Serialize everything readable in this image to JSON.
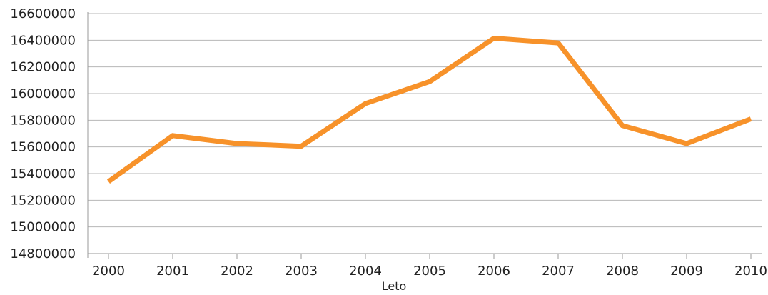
{
  "chart_data": {
    "type": "line",
    "title": "",
    "xlabel": "Leto",
    "ylabel": "",
    "x": [
      "2000",
      "2001",
      "2002",
      "2003",
      "2004",
      "2005",
      "2006",
      "2007",
      "2008",
      "2009",
      "2010"
    ],
    "series": [
      {
        "color": "#f7922a",
        "values": [
          15340000,
          15685000,
          15625000,
          15605000,
          15925000,
          16090000,
          16415000,
          16380000,
          15760000,
          15625000,
          15810000
        ]
      }
    ],
    "ylim": [
      14800000,
      16600000
    ],
    "yticks": [
      "14800000",
      "15000000",
      "15200000",
      "15400000",
      "15600000",
      "15800000",
      "16000000",
      "16200000",
      "16400000",
      "16600000"
    ],
    "grid": true,
    "legend": "none"
  }
}
